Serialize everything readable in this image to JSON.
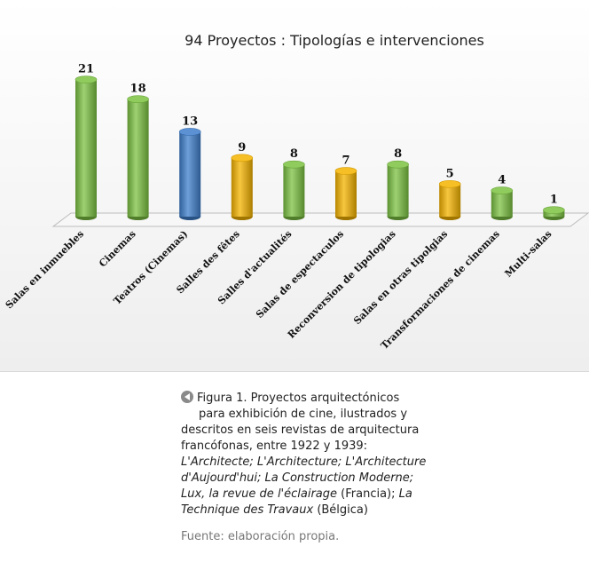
{
  "chart_data": {
    "type": "bar",
    "title": "94 Proyectos : Tipologías e intervenciones",
    "categories": [
      "Salas en inmuebles",
      "Cinemas",
      "Teatros (Cinemas)",
      "Salles des fêtes",
      "Salles d'actualités",
      "Salas de espectaculos",
      "Reconversion de tipologias",
      "Salas en otras tipolgias",
      "Transformaciones de cinemas",
      "Multi-salas"
    ],
    "values": [
      21,
      18,
      13,
      9,
      8,
      7,
      8,
      5,
      4,
      1
    ],
    "colors": [
      "#7cc242",
      "#7cc242",
      "#3f7fcc",
      "#f6b400",
      "#7cc242",
      "#f6b400",
      "#7cc242",
      "#f6b400",
      "#7cc242",
      "#7cc242"
    ],
    "data_labels": [
      "21",
      "18",
      "13",
      "9",
      "8",
      "7",
      "8",
      "5",
      "4",
      "1"
    ],
    "grid": false,
    "legend": "none"
  },
  "caption": {
    "line1": "Figura 1. Proyectos arquitectónicos",
    "line2": "para exhibición de cine, ilustrados y",
    "line3": "descritos en seis revistas de arquitectura",
    "line4": "francófonas, entre 1922 y 1939:",
    "line5": "L'Architecte; L'Architecture; L'Architecture",
    "line6": "d'Aujourd'hui; La Construction Moderne;",
    "line7_italic": "Lux, la revue de l'éclairage",
    "line7_tail": " (Francia); ",
    "line7_italic2": "La",
    "line8_italic": "Technique des Travaux",
    "line8_tail": " (Bélgica)"
  },
  "source": "Fuente: elaboración propia.",
  "icons": {
    "figure_marker": "left-arrow-circle-icon"
  }
}
